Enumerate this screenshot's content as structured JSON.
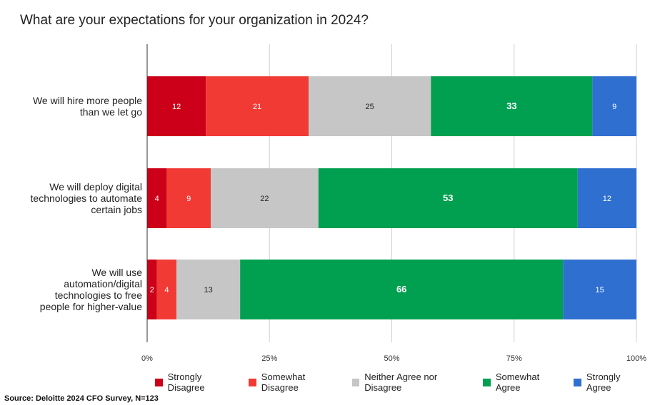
{
  "title": "What are your expectations for your organization in 2024?",
  "source": "Source: Deloitte 2024 CFO Survey, N=123",
  "chart_data": {
    "type": "bar",
    "orientation": "horizontal",
    "stacked": "percent",
    "categories": [
      [
        "We will hire more people",
        "than we let go"
      ],
      [
        "We will deploy digital",
        "technologies to automate",
        "certain jobs"
      ],
      [
        "We will use",
        "automation/digital",
        "technologies to free",
        "people for higher-value"
      ]
    ],
    "series": [
      {
        "name": "Strongly Disagree",
        "color": "#cc0019",
        "label_color": "#ffffff",
        "values": [
          12,
          4,
          2
        ]
      },
      {
        "name": "Somewhat Disagree",
        "color": "#f23a35",
        "label_color": "#ffffff",
        "values": [
          21,
          9,
          4
        ]
      },
      {
        "name": "Neither Agree nor Disagree",
        "color": "#c6c6c6",
        "label_color": "#222222",
        "values": [
          25,
          22,
          13
        ]
      },
      {
        "name": "Somewhat Agree",
        "color": "#00a050",
        "label_color": "#ffffff",
        "values": [
          33,
          53,
          66
        ]
      },
      {
        "name": "Strongly Agree",
        "color": "#2f6fd0",
        "label_color": "#ffffff",
        "values": [
          9,
          12,
          15
        ]
      }
    ],
    "xticks": [
      "0%",
      "25%",
      "50%",
      "75%",
      "100%"
    ],
    "xlim": [
      0,
      100
    ],
    "grid": true,
    "legend": "bottom"
  }
}
